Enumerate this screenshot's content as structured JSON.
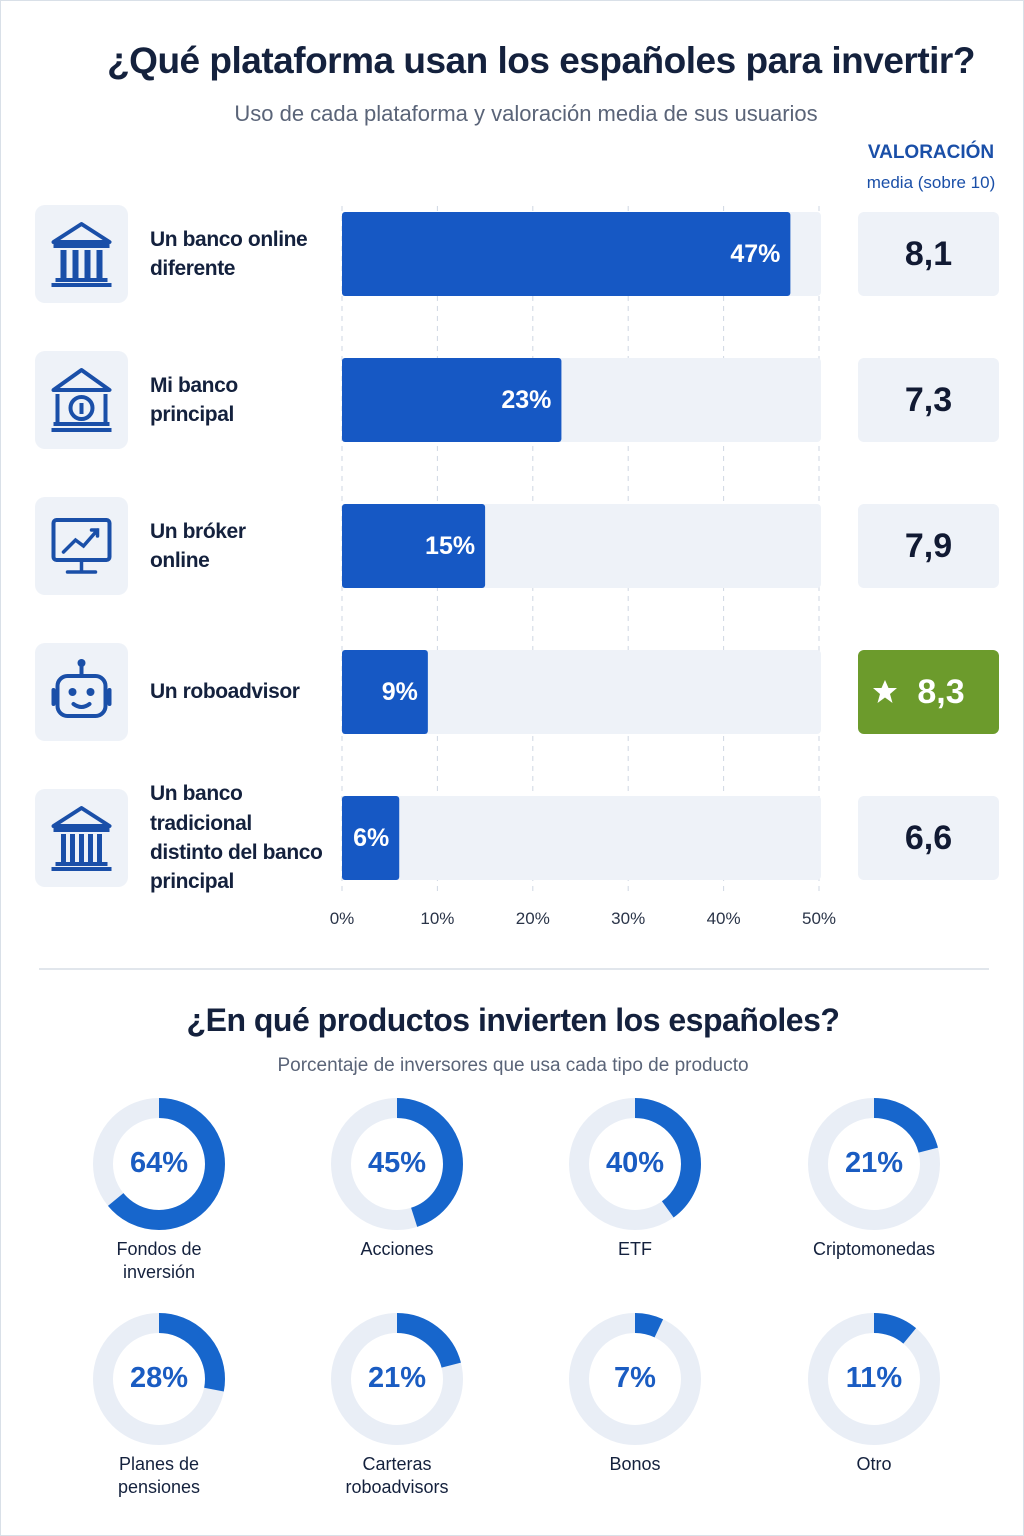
{
  "chart_data": [
    {
      "type": "bar",
      "orientation": "horizontal",
      "title": "¿Qué plataforma usan los españoles para invertir?",
      "subtitle": "Uso de cada plataforma y valoración media de sus usuarios",
      "categories": [
        "Un banco online\ndiferente",
        "Mi banco\nprincipal",
        "Un bróker\nonline",
        "Un roboadvisor",
        "Un banco tradicional\ndistinto del banco\nprincipal"
      ],
      "values": [
        47,
        23,
        15,
        9,
        6
      ],
      "value_labels": [
        "47%",
        "23%",
        "15%",
        "9%",
        "6%"
      ],
      "color": "#1658c4",
      "xlim": [
        0,
        50
      ],
      "xticks": [
        {
          "value": 0,
          "label": "0%"
        },
        {
          "value": 10,
          "label": "10%"
        },
        {
          "value": 20,
          "label": "20%"
        },
        {
          "value": 30,
          "label": "30%"
        },
        {
          "value": 40,
          "label": "40%"
        },
        {
          "value": 50,
          "label": "50%"
        }
      ],
      "grid": true,
      "ratings": {
        "title": "VALORACIÓN",
        "subtitle": "media (sobre 10)",
        "values": [
          8.1,
          7.3,
          7.9,
          8.3,
          6.6
        ],
        "value_labels": [
          "8,1",
          "7,3",
          "7,9",
          "8,3",
          "6,6"
        ],
        "highlight_color": "#6c9b2c"
      }
    },
    {
      "type": "donut",
      "title": "¿En qué productos invierten los españoles?",
      "subtitle": "Porcentaje de inversores que usa cada tipo de producto",
      "categories": [
        "Fondos de\ninversión",
        "Acciones",
        "ETF",
        "Criptomonedas",
        "Planes de\npensiones",
        "Carteras\nroboadvisors",
        "Bonos",
        "Otro"
      ],
      "values": [
        64,
        45,
        40,
        21,
        28,
        21,
        7,
        11
      ],
      "value_labels": [
        "64%",
        "45%",
        "40%",
        "21%",
        "28%",
        "21%",
        "7%",
        "11%"
      ],
      "total": 100,
      "color": "#1766cc"
    }
  ]
}
